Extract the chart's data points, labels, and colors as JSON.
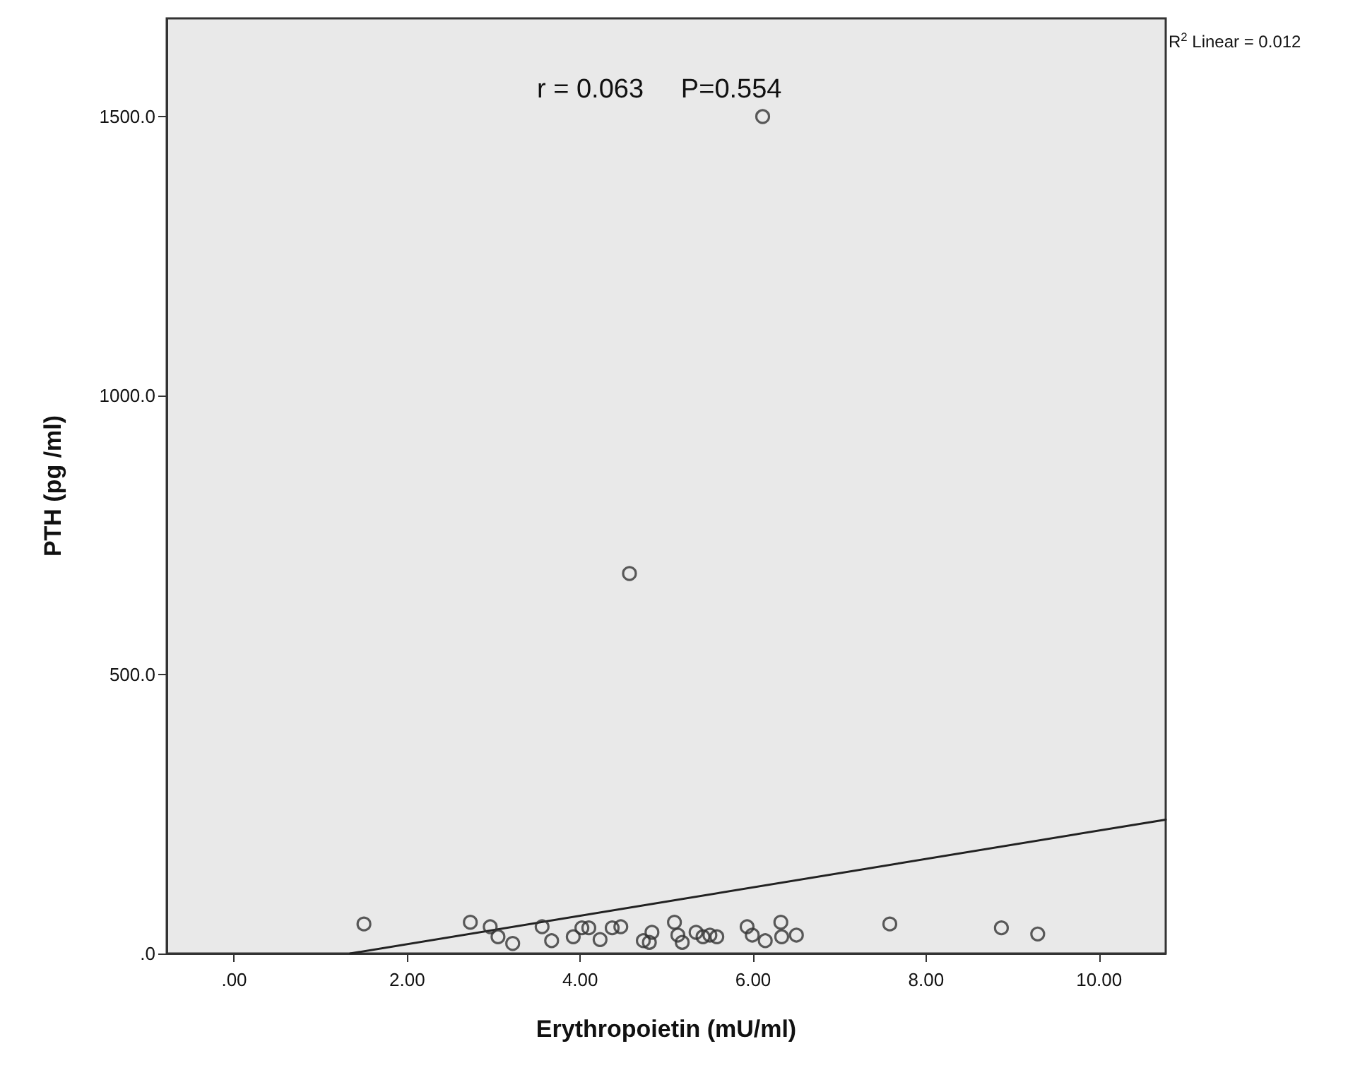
{
  "chart_data": {
    "type": "scatter",
    "xlabel": "Erythropoietin (mU/ml)",
    "ylabel": "PTH (pg /ml)",
    "annotations": [
      "r = 0.063     P=0.554",
      "R$^{2}$ Linear = 0.012"
    ],
    "xlim": [
      -0.78,
      10.77
    ],
    "ylim": [
      0,
      1676
    ],
    "xticks": [
      {
        "value": 0,
        "label": ".00"
      },
      {
        "value": 2,
        "label": "2.00"
      },
      {
        "value": 4,
        "label": "4.00"
      },
      {
        "value": 6,
        "label": "6.00"
      },
      {
        "value": 8,
        "label": "8.00"
      },
      {
        "value": 10,
        "label": "10.00"
      }
    ],
    "yticks": [
      {
        "value": 0,
        "label": ".0"
      },
      {
        "value": 500,
        "label": "500.0"
      },
      {
        "value": 1000,
        "label": "1000.0"
      },
      {
        "value": 1500,
        "label": "1500.0"
      }
    ],
    "grid": false,
    "marker": "circle",
    "series": [
      {
        "color": "#333333",
        "x": [
          1.5,
          2.73,
          2.96,
          3.05,
          3.22,
          3.56,
          3.67,
          3.92,
          4.02,
          4.1,
          4.23,
          4.37,
          4.47,
          4.57,
          4.73,
          4.8,
          4.83,
          5.09,
          5.13,
          5.18,
          5.34,
          5.42,
          5.5,
          5.58,
          5.93,
          5.99,
          6.14,
          6.32,
          6.33,
          6.5,
          7.58,
          8.87,
          9.29,
          6.11
        ],
        "values": [
          53,
          56,
          48,
          30,
          18,
          48,
          23,
          30,
          46,
          46,
          25,
          46,
          48,
          681,
          23,
          20,
          38,
          56,
          33,
          20,
          38,
          30,
          33,
          30,
          48,
          33,
          23,
          56,
          30,
          33,
          53,
          46,
          35,
          1500
        ]
      },
      {
        "type": "line",
        "marker": "none",
        "color": "#222222",
        "x": [
          1.34,
          10.77
        ],
        "values": [
          0,
          240
        ]
      }
    ]
  }
}
